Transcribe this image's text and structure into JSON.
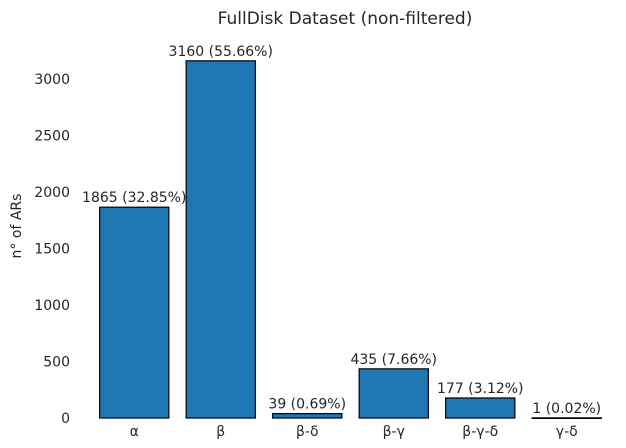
{
  "chart_data": {
    "type": "bar",
    "title": "FullDisk Dataset (non-filtered)",
    "xlabel": "",
    "ylabel": "n° of ARs",
    "categories": [
      "α",
      "β",
      "β-δ",
      "β-γ",
      "β-γ-δ",
      "γ-δ"
    ],
    "values": [
      1865,
      3160,
      39,
      435,
      177,
      1
    ],
    "data_labels": [
      "1865 (32.85%)",
      "3160 (55.66%)",
      "39 (0.69%)",
      "435 (7.66%)",
      "177 (3.12%)",
      "1 (0.02%)"
    ],
    "yticks": [
      0,
      500,
      1000,
      1500,
      2000,
      2500,
      3000
    ],
    "ylim": [
      0,
      3300
    ],
    "grid": false,
    "bar_color": "#1f77b4",
    "edge_color": "#000000"
  }
}
